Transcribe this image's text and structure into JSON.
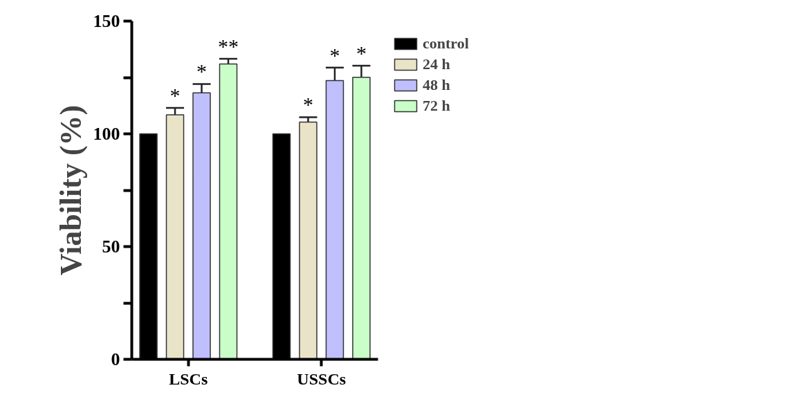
{
  "chart_data": {
    "type": "bar",
    "ylabel": "Viability (%)",
    "categories": [
      "LSCs",
      "USSCs"
    ],
    "series": [
      {
        "name": "control",
        "color": "#000000",
        "values": [
          100,
          100
        ]
      },
      {
        "name": "24 h",
        "color": "#e9e4c8",
        "values": [
          108.4,
          105.2
        ],
        "errors": [
          3.1,
          2.2
        ],
        "value_labels": [
          "*",
          "*"
        ]
      },
      {
        "name": "48 h",
        "color": "#bfbffe",
        "values": [
          118.2,
          123.6
        ],
        "errors": [
          3.9,
          5.8
        ],
        "value_labels": [
          "*",
          "*"
        ]
      },
      {
        "name": "72 h",
        "color": "#c9fec9",
        "values": [
          131.0,
          125.1
        ],
        "errors": [
          2.3,
          5.1
        ],
        "value_labels": [
          "**",
          "*"
        ]
      }
    ],
    "ylim": [
      0,
      150
    ],
    "yticks": [
      0,
      {
        "value": 25,
        "label": null
      },
      50,
      {
        "value": 75,
        "label": null
      },
      100,
      {
        "value": 125,
        "label": null
      },
      150
    ],
    "grid": false,
    "legend": "top right"
  }
}
